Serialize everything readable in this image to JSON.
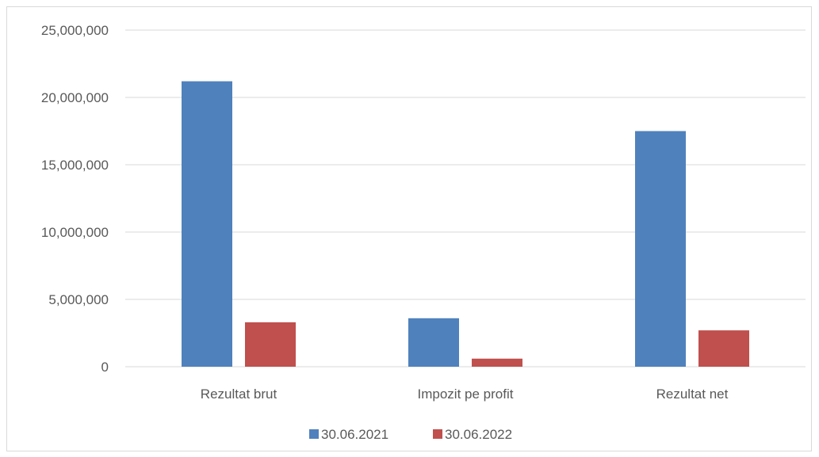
{
  "chart_data": {
    "type": "bar",
    "categories": [
      "Rezultat brut",
      "Impozit pe profit",
      "Rezultat net"
    ],
    "series": [
      {
        "name": "30.06.2021",
        "color": "#4f81bd",
        "values": [
          21200000,
          3600000,
          17500000
        ]
      },
      {
        "name": "30.06.2022",
        "color": "#c0504d",
        "values": [
          3300000,
          600000,
          2700000
        ]
      }
    ],
    "ylim": [
      0,
      25000000
    ],
    "yticks": [
      "0",
      "5,000,000",
      "10,000,000",
      "15,000,000",
      "20,000,000",
      "25,000,000"
    ],
    "ytick_values": [
      0,
      5000000,
      10000000,
      15000000,
      20000000,
      25000000
    ],
    "grid": true,
    "legend_position": "bottom",
    "gridline_color": "#d9d9d9"
  }
}
